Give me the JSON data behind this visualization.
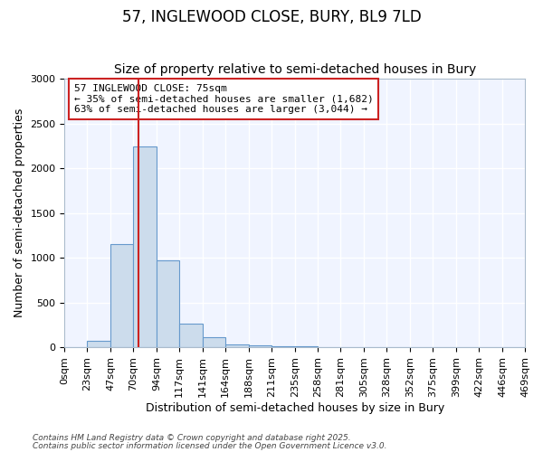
{
  "title": "57, INGLEWOOD CLOSE, BURY, BL9 7LD",
  "subtitle": "Size of property relative to semi-detached houses in Bury",
  "xlabel": "Distribution of semi-detached houses by size in Bury",
  "ylabel": "Number of semi-detached properties",
  "bin_edges": [
    0,
    23,
    47,
    70,
    94,
    117,
    141,
    164,
    188,
    211,
    235,
    258,
    281,
    305,
    328,
    352,
    375,
    399,
    422,
    446,
    469
  ],
  "bar_heights": [
    0,
    75,
    1150,
    2240,
    975,
    265,
    110,
    35,
    20,
    10,
    8,
    5,
    0,
    0,
    0,
    0,
    0,
    0,
    0,
    0
  ],
  "bar_color": "#ccdcec",
  "bar_edge_color": "#6699cc",
  "vline_x": 75,
  "vline_color": "#cc2222",
  "ylim": [
    0,
    3000
  ],
  "yticks": [
    0,
    500,
    1000,
    1500,
    2000,
    2500,
    3000
  ],
  "annotation_title": "57 INGLEWOOD CLOSE: 75sqm",
  "annotation_line2": "← 35% of semi-detached houses are smaller (1,682)",
  "annotation_line3": "63% of semi-detached houses are larger (3,044) →",
  "annotation_box_facecolor": "#ffffff",
  "annotation_box_edgecolor": "#cc2222",
  "footnote1": "Contains HM Land Registry data © Crown copyright and database right 2025.",
  "footnote2": "Contains public sector information licensed under the Open Government Licence v3.0.",
  "background_color": "#ffffff",
  "plot_bg_color": "#f0f4ff",
  "grid_color": "#ffffff",
  "title_fontsize": 12,
  "subtitle_fontsize": 10,
  "ylabel_fontsize": 9,
  "xlabel_fontsize": 9,
  "tick_fontsize": 8,
  "annot_fontsize": 8,
  "footnote_fontsize": 6.5
}
